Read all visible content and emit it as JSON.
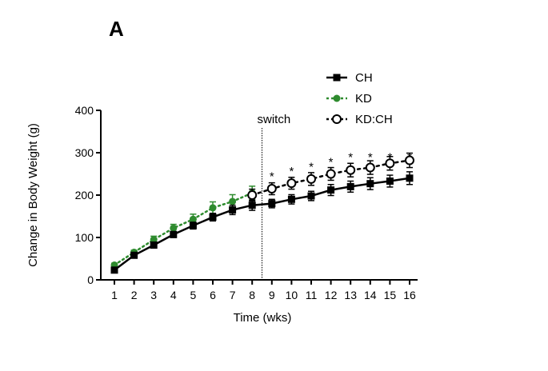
{
  "panel_label": "A",
  "chart_data": {
    "type": "line",
    "xlabel": "Time (wks)",
    "ylabel": "Change in Body Weight (g)",
    "xlim": [
      1,
      16
    ],
    "ylim": [
      0,
      400
    ],
    "x_ticks": [
      1,
      2,
      3,
      4,
      5,
      6,
      7,
      8,
      9,
      10,
      11,
      12,
      13,
      14,
      15,
      16
    ],
    "y_ticks": [
      0,
      100,
      200,
      300,
      400
    ],
    "grid": false,
    "legend_placement": "top-right",
    "series": [
      {
        "name": "CH",
        "color": "#000000",
        "marker": "square",
        "line_style": "solid",
        "x": [
          1,
          2,
          3,
          4,
          5,
          6,
          7,
          8,
          9,
          10,
          11,
          12,
          13,
          14,
          15,
          16
        ],
        "y": [
          23,
          58,
          82,
          107,
          128,
          148,
          165,
          176,
          180,
          190,
          198,
          212,
          220,
          227,
          233,
          240
        ],
        "err": [
          4,
          5,
          7,
          7,
          8,
          9,
          11,
          12,
          10,
          11,
          11,
          13,
          13,
          14,
          14,
          15
        ]
      },
      {
        "name": "KD",
        "color": "#2e8b2e",
        "marker": "circle-filled",
        "line_style": "dotted",
        "x": [
          1,
          2,
          3,
          4,
          5,
          6,
          7,
          8
        ],
        "y": [
          35,
          65,
          95,
          122,
          143,
          170,
          185,
          205
        ],
        "err": [
          4,
          5,
          8,
          9,
          12,
          14,
          16,
          16
        ]
      },
      {
        "name": "KD:CH",
        "color": "#000000",
        "marker": "circle-open",
        "line_style": "dotted",
        "x": [
          8,
          9,
          10,
          11,
          12,
          13,
          14,
          15,
          16
        ],
        "y": [
          200,
          215,
          228,
          238,
          250,
          259,
          265,
          275,
          282
        ],
        "err": [
          14,
          14,
          14,
          15,
          15,
          16,
          16,
          16,
          17
        ]
      }
    ],
    "annotations": [
      {
        "text": "switch",
        "x": 8.5
      },
      {
        "text": "*",
        "x": 9,
        "y": 250
      },
      {
        "text": "*",
        "x": 10,
        "y": 262
      },
      {
        "text": "*",
        "x": 11,
        "y": 273
      },
      {
        "text": "*",
        "x": 12,
        "y": 284
      },
      {
        "text": "*",
        "x": 13,
        "y": 295
      },
      {
        "text": "*",
        "x": 14,
        "y": 295
      },
      {
        "text": "*",
        "x": 15,
        "y": 295
      },
      {
        "text": "*",
        "x": 16,
        "y": 295
      }
    ]
  }
}
